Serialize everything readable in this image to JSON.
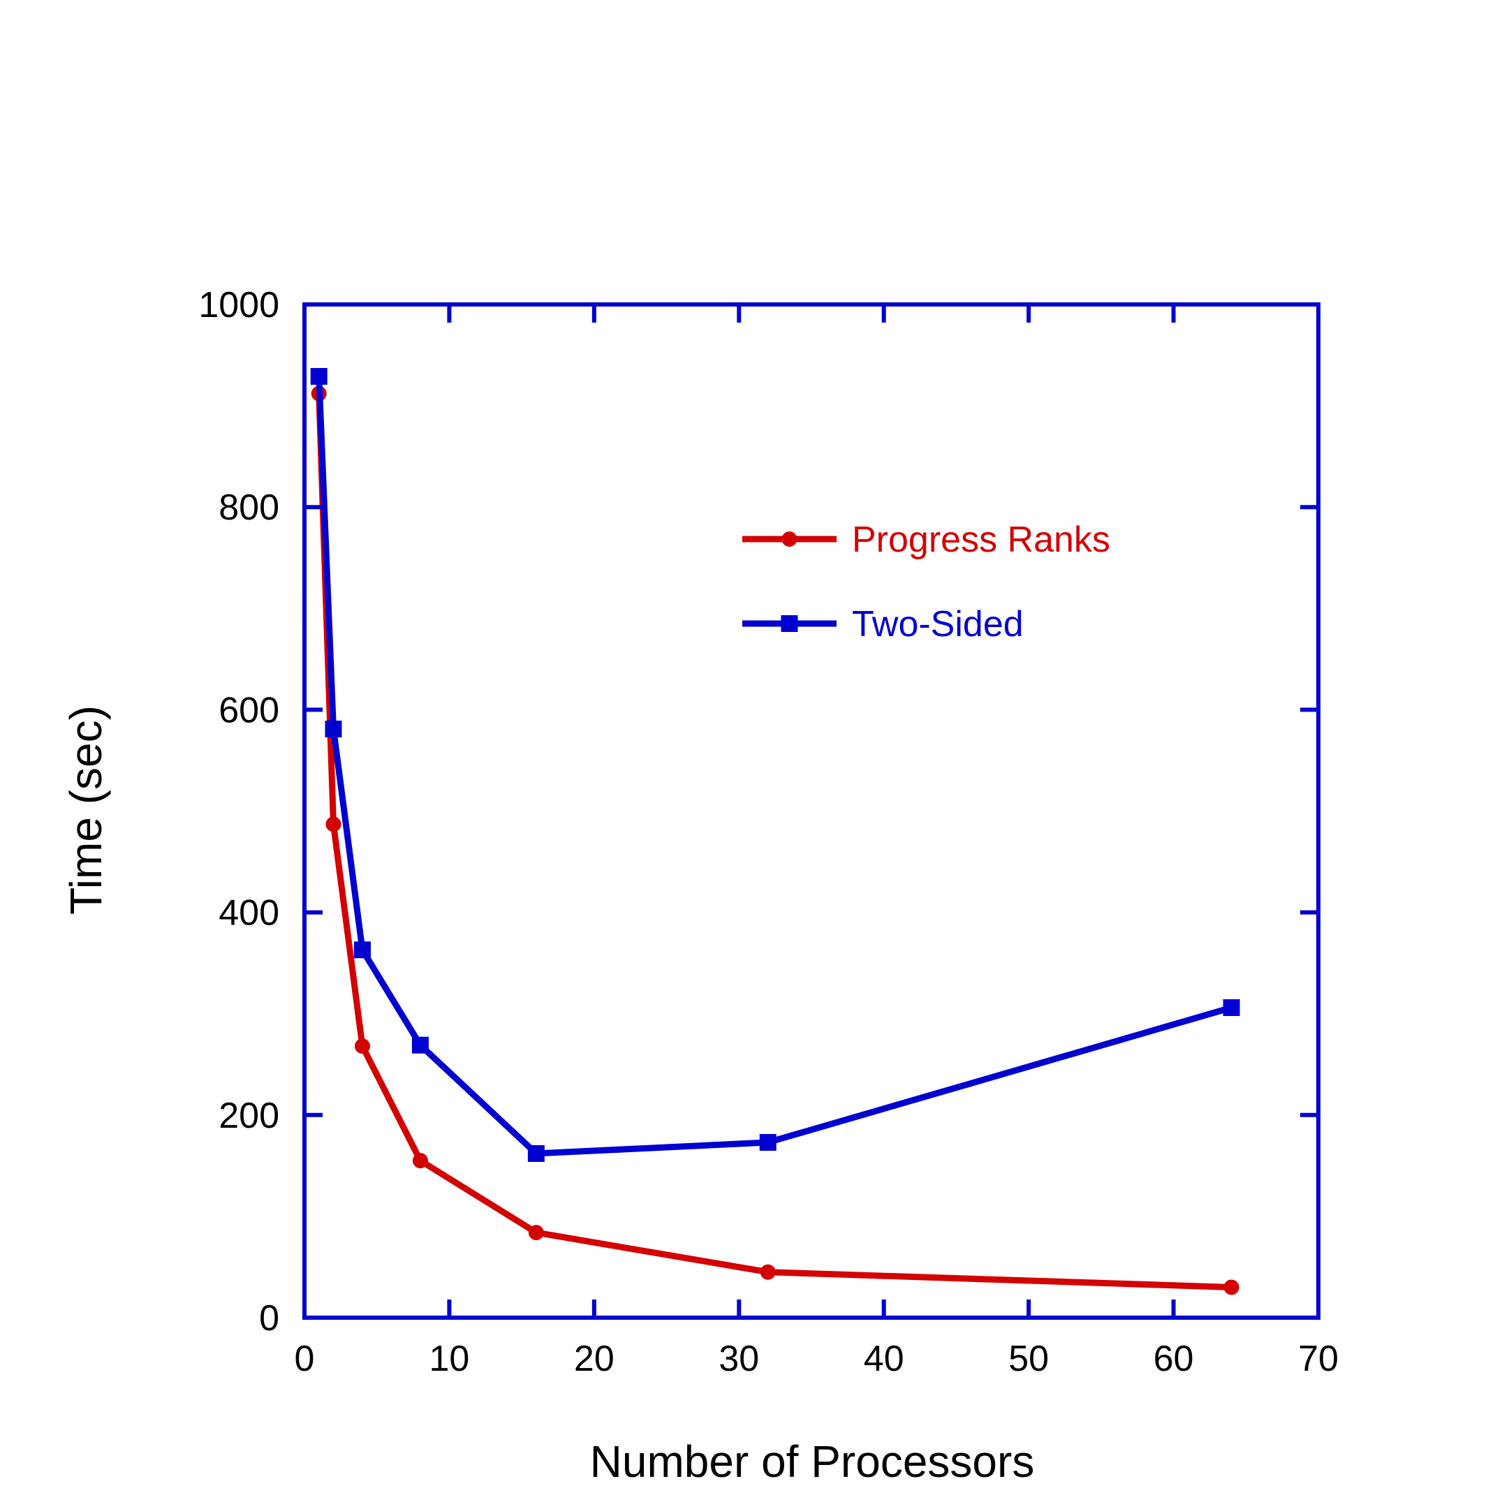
{
  "chart_data": {
    "type": "line",
    "title": "",
    "xlabel": "Number of Processors",
    "ylabel": "Time (sec)",
    "xlim": [
      0,
      70
    ],
    "ylim": [
      0,
      1000
    ],
    "xticks": [
      0,
      10,
      20,
      30,
      40,
      50,
      60,
      70
    ],
    "yticks": [
      0,
      200,
      400,
      600,
      800,
      1000
    ],
    "grid": false,
    "legend_position": "upper-right",
    "frame_color": "#0000d0",
    "series": [
      {
        "name": "Progress Ranks",
        "color": "#d40000",
        "marker": "circle",
        "x": [
          1,
          2,
          4,
          8,
          16,
          32,
          64
        ],
        "y": [
          912,
          487,
          268,
          155,
          84,
          45,
          30
        ]
      },
      {
        "name": "Two-Sided",
        "color": "#0000d0",
        "marker": "square",
        "x": [
          1,
          2,
          4,
          8,
          16,
          32,
          64
        ],
        "y": [
          929,
          581,
          363,
          269,
          162,
          173,
          306
        ]
      }
    ]
  }
}
